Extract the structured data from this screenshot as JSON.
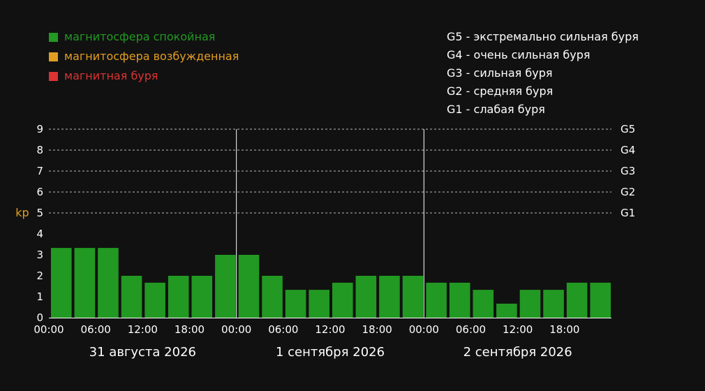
{
  "legend": {
    "items": [
      {
        "label": "магнитосфера спокойная",
        "color": "#229922"
      },
      {
        "label": "магнитосфера возбужденная",
        "color": "#e39d22"
      },
      {
        "label": "магнитная буря",
        "color": "#dd3333"
      }
    ]
  },
  "storm_scale": [
    "G5 - экстремально сильная буря",
    "G4 - очень сильная буря",
    "G3 - сильная буря",
    "G2 - средняя буря",
    "G1 - слабая буря"
  ],
  "chart_data": {
    "type": "bar",
    "ylabel": "kp",
    "ylim": [
      0,
      9
    ],
    "yticks": [
      "0",
      "1",
      "2",
      "3",
      "4",
      "5",
      "6",
      "7",
      "8",
      "9"
    ],
    "g_levels": [
      {
        "label": "G1",
        "kp": 5
      },
      {
        "label": "G2",
        "kp": 6
      },
      {
        "label": "G3",
        "kp": 7
      },
      {
        "label": "G4",
        "kp": 8
      },
      {
        "label": "G5",
        "kp": 9
      }
    ],
    "time_ticks": [
      "00:00",
      "06:00",
      "12:00",
      "18:00",
      "00:00",
      "06:00",
      "12:00",
      "18:00",
      "00:00",
      "06:00",
      "12:00",
      "18:00"
    ],
    "days": [
      "31 августа 2026",
      "1 сентября 2026",
      "2 сентября 2026"
    ],
    "bar_color": "#229922",
    "values": [
      3.33,
      3.33,
      3.33,
      2,
      1.67,
      2,
      2,
      3,
      3,
      2,
      1.33,
      1.33,
      1.67,
      2,
      2,
      2,
      1.67,
      1.67,
      1.33,
      0.67,
      1.33,
      1.33,
      1.67,
      1.67
    ]
  }
}
